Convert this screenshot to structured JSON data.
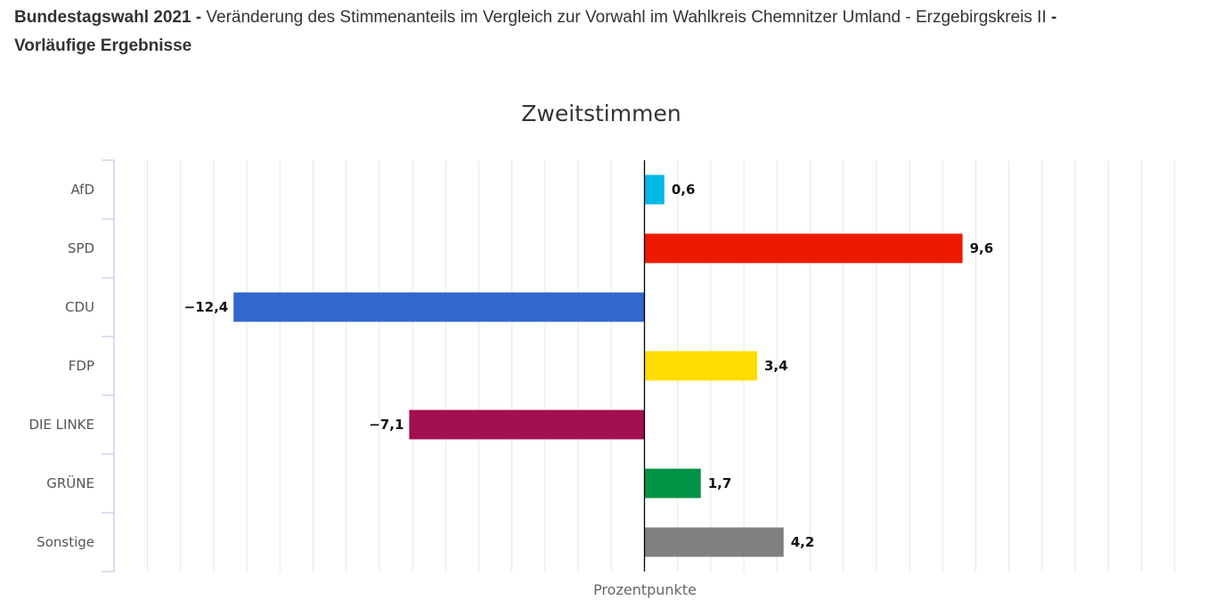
{
  "header": {
    "title_bold": "Bundestagswahl 2021 -",
    "title_regular": "Veränderung des Stimmenanteils im Vergleich zur Vorwahl im Wahlkreis Chemnitzer Umland - Erzgebirgskreis II",
    "title_bold_tail": "-",
    "subtitle_bold": "Vorläufige Ergebnisse"
  },
  "chart_data": {
    "type": "bar",
    "orientation": "horizontal",
    "title": "Zweitstimmen",
    "xlabel": "Prozentpunkte",
    "ylabel": "",
    "xlim": [
      -16,
      16
    ],
    "grid": true,
    "categories": [
      "AfD",
      "SPD",
      "CDU",
      "FDP",
      "DIE LINKE",
      "GRÜNE",
      "Sonstige"
    ],
    "values": [
      0.6,
      9.6,
      -12.4,
      3.4,
      -7.1,
      1.7,
      4.2
    ],
    "value_labels": [
      "0,6",
      "9,6",
      "−12,4",
      "3,4",
      "−7,1",
      "1,7",
      "4,2"
    ],
    "colors": [
      "#00b8e6",
      "#ee1a00",
      "#3068cc",
      "#ffdd00",
      "#a3104f",
      "#009245",
      "#808080"
    ]
  }
}
